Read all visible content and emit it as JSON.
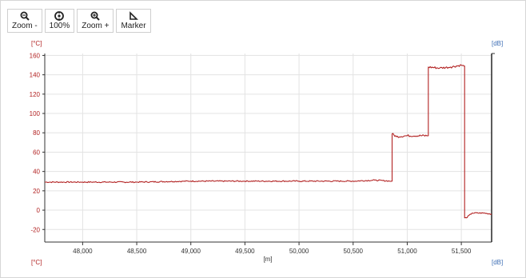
{
  "toolbar": {
    "zoom_out": {
      "label": "Zoom -",
      "icon": "zoom-out-icon"
    },
    "reset": {
      "label": "100%",
      "icon": "reset-zoom-icon"
    },
    "zoom_in": {
      "label": "Zoom +",
      "icon": "zoom-in-icon"
    },
    "marker": {
      "label": "Marker",
      "icon": "marker-icon"
    }
  },
  "axes": {
    "left_unit": "[°C]",
    "right_unit": "[dB]",
    "x_unit": "[m]"
  },
  "colors": {
    "trace": "#b22222",
    "left_axis_text": "#b22222",
    "right_axis_text": "#3f6fb5",
    "grid": "#e3e3e3"
  },
  "chart_data": {
    "type": "line",
    "title": "",
    "xlabel": "[m]",
    "ylabel": "[°C]",
    "y2label": "[dB]",
    "xlim": [
      47650,
      51780
    ],
    "ylim": [
      -33,
      162
    ],
    "xticks": [
      48000,
      48500,
      49000,
      49500,
      50000,
      50500,
      51000,
      51500
    ],
    "xtick_labels": [
      "48,000",
      "48,500",
      "49,000",
      "49,500",
      "50,000",
      "50,500",
      "51,000",
      "51,500"
    ],
    "yticks": [
      -20,
      0,
      20,
      40,
      60,
      80,
      100,
      120,
      140,
      160
    ],
    "grid": true,
    "series": [
      {
        "values_note": "",
        "x": [
          47650,
          48000,
          48500,
          49000,
          49500,
          50000,
          50500,
          50700,
          50855,
          50860,
          50900,
          51000,
          51190,
          51195,
          51300,
          51400,
          51500,
          51525,
          51530,
          51545,
          51600,
          51700,
          51780
        ],
        "y": [
          29,
          29,
          29,
          30,
          30,
          30,
          30,
          31,
          30,
          79,
          76,
          77,
          77,
          148,
          147,
          148,
          150,
          149,
          -8,
          -8,
          -3,
          -3,
          -4
        ]
      }
    ]
  }
}
